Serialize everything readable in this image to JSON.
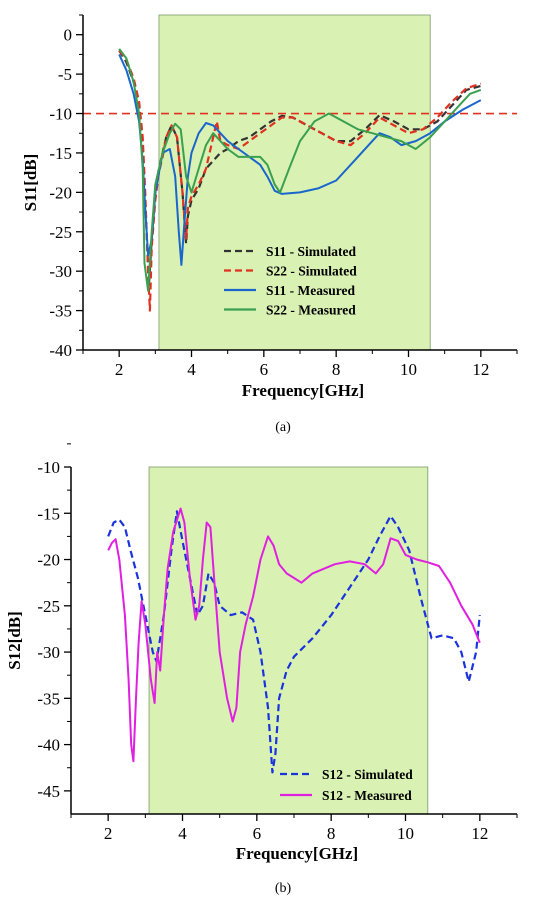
{
  "chart_data": [
    {
      "panel_caption": "(a)",
      "type": "line",
      "xlabel": "Frequency[GHz]",
      "ylabel": "S11[dB]",
      "xlim": [
        1.0,
        13.0
      ],
      "ylim": [
        -40,
        2.5
      ],
      "xticks": [
        2,
        4,
        6,
        8,
        10,
        12
      ],
      "yticks": [
        0,
        -5,
        -10,
        -15,
        -20,
        -25,
        -30,
        -35,
        -40
      ],
      "shaded_band": {
        "x": [
          3.1,
          10.6
        ],
        "color": "#d9f2b3"
      },
      "reference_line": {
        "y": -10,
        "color": "#e03020",
        "style": "dashed"
      },
      "legend_position": "lower-center",
      "series": [
        {
          "name": "S11 - Simulated",
          "color": "#333333",
          "style": "dashed",
          "x": [
            2.0,
            2.2,
            2.4,
            2.55,
            2.65,
            2.75,
            2.82,
            2.9,
            3.0,
            3.1,
            3.2,
            3.3,
            3.45,
            3.6,
            3.75,
            3.85,
            3.9,
            4.0,
            4.2,
            4.4,
            4.6,
            4.8,
            5.0,
            5.3,
            5.6,
            5.9,
            6.2,
            6.5,
            6.8,
            7.2,
            7.6,
            8.0,
            8.4,
            8.8,
            9.2,
            9.6,
            10.0,
            10.4,
            10.8,
            11.2,
            11.6,
            12.0
          ],
          "y": [
            -2,
            -3.5,
            -6,
            -9,
            -14,
            -24,
            -32,
            -26,
            -20,
            -17,
            -15,
            -13,
            -11.5,
            -13,
            -20,
            -26.5,
            -23,
            -21,
            -19.5,
            -17,
            -16,
            -15,
            -14.5,
            -13.5,
            -13,
            -12,
            -11,
            -10.3,
            -10.5,
            -11.5,
            -12.5,
            -13.5,
            -13.5,
            -12,
            -10.2,
            -11,
            -12,
            -12,
            -11,
            -9,
            -7,
            -6.5
          ]
        },
        {
          "name": "S22 - Simulated",
          "color": "#e03020",
          "style": "dashed",
          "x": [
            2.0,
            2.2,
            2.4,
            2.55,
            2.65,
            2.72,
            2.8,
            2.85,
            2.9,
            3.0,
            3.1,
            3.2,
            3.3,
            3.45,
            3.6,
            3.75,
            3.85,
            3.9,
            4.0,
            4.2,
            4.4,
            4.6,
            4.7,
            4.8,
            5.0,
            5.3,
            5.6,
            5.9,
            6.2,
            6.5,
            6.8,
            7.2,
            7.6,
            8.0,
            8.4,
            8.8,
            9.2,
            9.6,
            10.0,
            10.4,
            10.8,
            11.2,
            11.6,
            12.0
          ],
          "y": [
            -2,
            -3.2,
            -5.5,
            -8.5,
            -13,
            -20,
            -30,
            -35,
            -27,
            -21,
            -17.5,
            -15.5,
            -13,
            -11.5,
            -13,
            -20,
            -26,
            -22,
            -20.5,
            -19,
            -17,
            -13,
            -11,
            -13.5,
            -14,
            -14.5,
            -13.5,
            -12.5,
            -11.5,
            -10.5,
            -10.5,
            -11.5,
            -12.5,
            -13.5,
            -14,
            -12.5,
            -10.5,
            -11.5,
            -12.5,
            -12,
            -10.5,
            -8.5,
            -6.8,
            -6.2
          ]
        },
        {
          "name": "S11 - Measured",
          "color": "#1a66cc",
          "style": "solid",
          "x": [
            2.0,
            2.2,
            2.4,
            2.55,
            2.65,
            2.72,
            2.8,
            2.9,
            3.0,
            3.2,
            3.4,
            3.55,
            3.65,
            3.72,
            3.8,
            3.9,
            4.0,
            4.2,
            4.4,
            4.6,
            4.8,
            5.0,
            5.3,
            5.6,
            5.9,
            6.1,
            6.3,
            6.5,
            7.0,
            7.5,
            8.0,
            8.5,
            9.0,
            9.2,
            9.5,
            9.8,
            10.2,
            10.6,
            11.0,
            11.5,
            12.0
          ],
          "y": [
            -2.5,
            -4.5,
            -7.5,
            -11,
            -16,
            -22,
            -28,
            -26,
            -20,
            -15,
            -14.5,
            -18,
            -25,
            -29.2,
            -24,
            -18,
            -15,
            -12.5,
            -11.2,
            -11.5,
            -12.5,
            -13.5,
            -14.5,
            -15.5,
            -16.5,
            -18,
            -19.8,
            -20.2,
            -20,
            -19.5,
            -18.5,
            -16,
            -13.5,
            -12.5,
            -13,
            -14,
            -13.5,
            -12.5,
            -11,
            -9.5,
            -8.3
          ]
        },
        {
          "name": "S22 - Measured",
          "color": "#3aa050",
          "style": "solid",
          "x": [
            2.0,
            2.2,
            2.4,
            2.55,
            2.65,
            2.7,
            2.8,
            2.9,
            3.0,
            3.2,
            3.4,
            3.55,
            3.7,
            3.85,
            4.0,
            4.2,
            4.4,
            4.6,
            4.8,
            5.0,
            5.3,
            5.6,
            5.9,
            6.1,
            6.3,
            6.45,
            6.7,
            7.0,
            7.4,
            7.8,
            8.2,
            8.6,
            9.0,
            9.4,
            9.8,
            10.2,
            10.6,
            11.0,
            11.4,
            11.7,
            12.0
          ],
          "y": [
            -1.8,
            -3,
            -6,
            -10,
            -17,
            -29,
            -32.5,
            -25,
            -19,
            -15,
            -12.5,
            -11.3,
            -12,
            -18,
            -20,
            -17,
            -14,
            -12.5,
            -13.5,
            -14.5,
            -15.5,
            -15.5,
            -15.5,
            -16.5,
            -19,
            -20,
            -17,
            -13.5,
            -11,
            -10,
            -11,
            -12,
            -12.5,
            -13,
            -13.5,
            -14.5,
            -13,
            -11,
            -9,
            -7.5,
            -7
          ]
        }
      ]
    },
    {
      "panel_caption": "(b)",
      "type": "line",
      "xlabel": "Frequency[GHz]",
      "ylabel": "S12[dB]",
      "xlim": [
        1.0,
        13.0
      ],
      "ylim": [
        -47.5,
        -10
      ],
      "xticks": [
        2,
        4,
        6,
        8,
        10,
        12
      ],
      "yticks": [
        -10,
        -15,
        -20,
        -25,
        -30,
        -35,
        -40,
        -45
      ],
      "shaded_band": {
        "x": [
          3.1,
          10.6
        ],
        "color": "#d9f2b3"
      },
      "legend_position": "lower-center",
      "series": [
        {
          "name": "S12 - Simulated",
          "color": "#1a33dd",
          "style": "dashed",
          "x": [
            2.0,
            2.15,
            2.3,
            2.45,
            2.6,
            2.8,
            3.0,
            3.2,
            3.3,
            3.5,
            3.7,
            3.85,
            4.0,
            4.2,
            4.4,
            4.55,
            4.7,
            4.85,
            5.0,
            5.3,
            5.6,
            5.9,
            6.1,
            6.3,
            6.42,
            6.5,
            6.6,
            6.8,
            7.0,
            7.5,
            8.0,
            8.5,
            9.0,
            9.3,
            9.6,
            9.8,
            10.1,
            10.4,
            10.7,
            11.0,
            11.3,
            11.5,
            11.7,
            11.9,
            12.0
          ],
          "y": [
            -17.5,
            -16,
            -15.7,
            -16.5,
            -19,
            -22,
            -26,
            -30,
            -31,
            -26,
            -19,
            -14.8,
            -18,
            -22,
            -26,
            -25,
            -21.5,
            -22.5,
            -25,
            -26,
            -25.7,
            -26.5,
            -30,
            -36,
            -43,
            -41,
            -35,
            -32,
            -30.5,
            -28.5,
            -26,
            -23,
            -20,
            -17.5,
            -15.3,
            -16.5,
            -19,
            -24,
            -28.5,
            -28.2,
            -28.5,
            -30,
            -33.2,
            -30,
            -26
          ]
        },
        {
          "name": "S12 - Measured",
          "color": "#e020e0",
          "style": "solid",
          "x": [
            2.0,
            2.1,
            2.2,
            2.3,
            2.45,
            2.55,
            2.62,
            2.68,
            2.75,
            2.82,
            2.9,
            3.0,
            3.15,
            3.25,
            3.32,
            3.4,
            3.5,
            3.6,
            3.75,
            3.95,
            4.05,
            4.2,
            4.35,
            4.45,
            4.55,
            4.65,
            4.75,
            4.85,
            5.0,
            5.2,
            5.35,
            5.45,
            5.55,
            5.7,
            5.9,
            6.1,
            6.3,
            6.45,
            6.6,
            6.8,
            7.0,
            7.2,
            7.5,
            7.8,
            8.1,
            8.5,
            8.9,
            9.2,
            9.4,
            9.6,
            9.8,
            10.0,
            10.3,
            10.6,
            10.9,
            11.2,
            11.5,
            11.8,
            12.0
          ],
          "y": [
            -19,
            -18.2,
            -17.8,
            -20,
            -26,
            -33,
            -40,
            -41.8,
            -35,
            -29,
            -24.5,
            -27,
            -33,
            -35.5,
            -30,
            -32,
            -26,
            -21,
            -17,
            -14.5,
            -16,
            -22,
            -26.5,
            -25,
            -20,
            -16,
            -16.5,
            -22,
            -30,
            -35,
            -37.5,
            -36,
            -30,
            -27,
            -24,
            -20,
            -17.5,
            -18.5,
            -20.5,
            -21.5,
            -22,
            -22.5,
            -21.5,
            -21,
            -20.5,
            -20.2,
            -20.5,
            -21.5,
            -20.5,
            -17.7,
            -18,
            -19.5,
            -20,
            -20.3,
            -20.7,
            -22.5,
            -25,
            -27,
            -29
          ]
        }
      ]
    }
  ]
}
